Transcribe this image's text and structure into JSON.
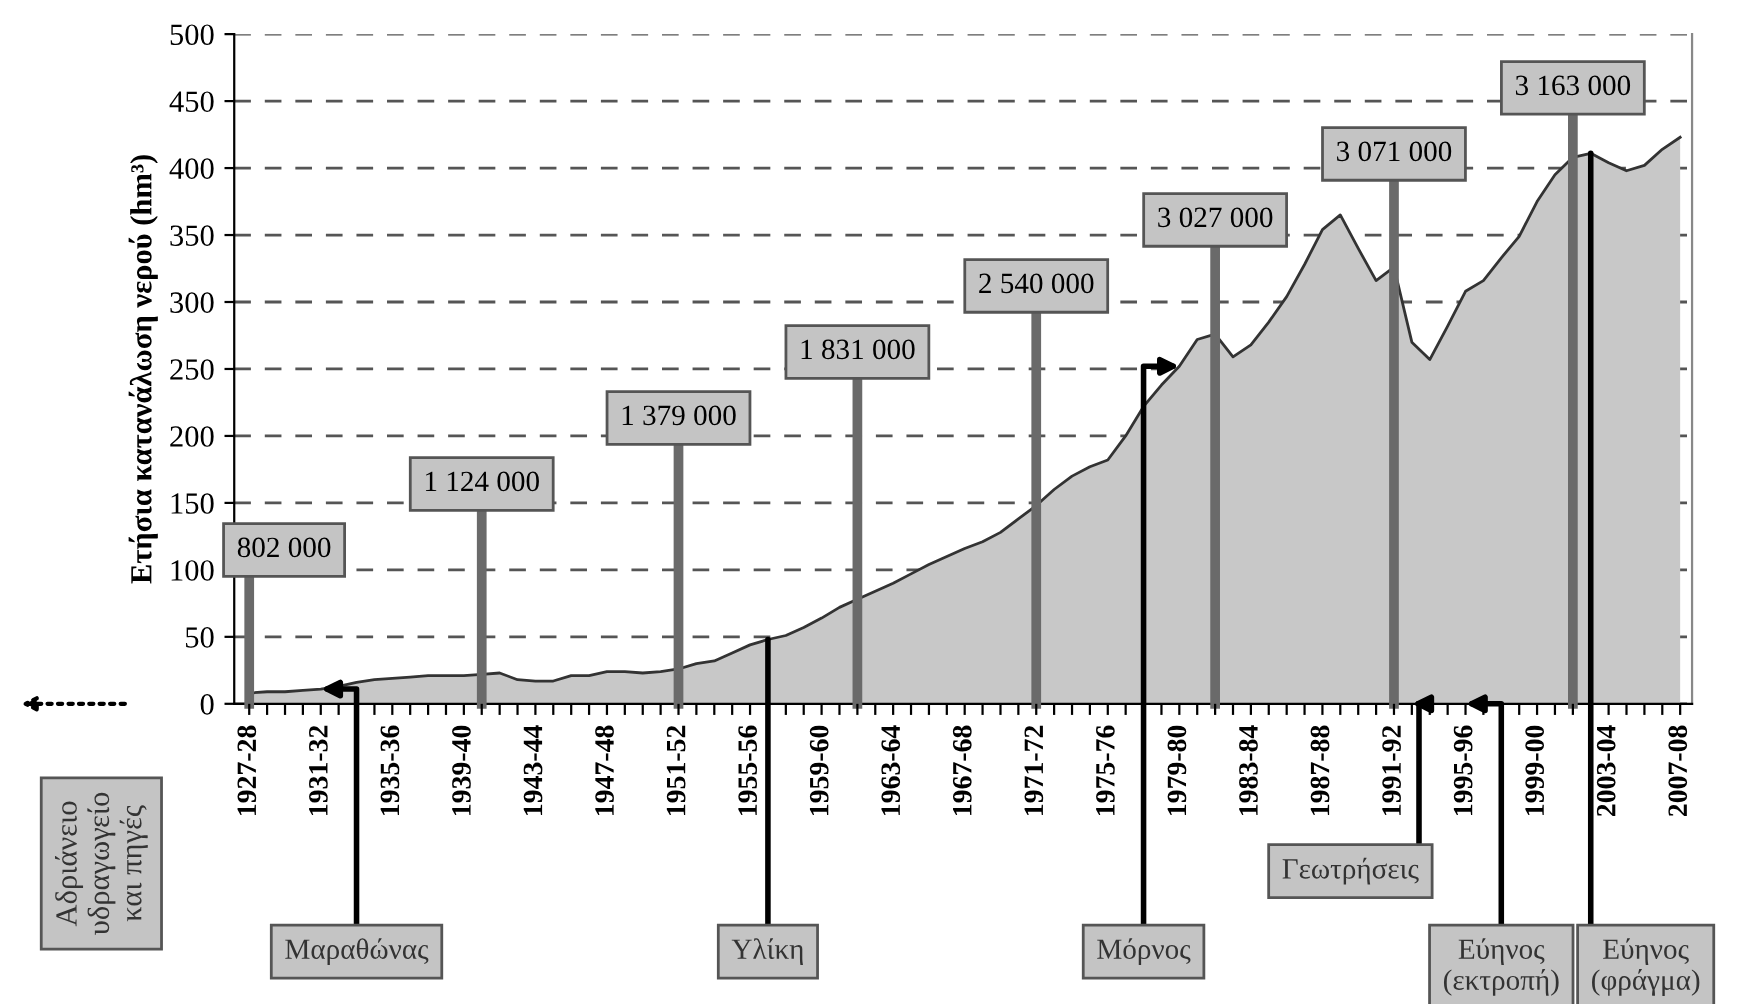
{
  "chart_data": {
    "type": "area",
    "ylabel": "Ετήσια κατανάλωση νερού (hm³)",
    "x": [
      "1927",
      "1928",
      "1929",
      "1930",
      "1931",
      "1932",
      "1933",
      "1934",
      "1935",
      "1936",
      "1937",
      "1938",
      "1939",
      "1940",
      "1941",
      "1942",
      "1943",
      "1944",
      "1945",
      "1946",
      "1947",
      "1948",
      "1949",
      "1950",
      "1951",
      "1952",
      "1953",
      "1954",
      "1955",
      "1956",
      "1957",
      "1958",
      "1959",
      "1960",
      "1961",
      "1962",
      "1963",
      "1964",
      "1965",
      "1966",
      "1967",
      "1968",
      "1969",
      "1970",
      "1971",
      "1972",
      "1973",
      "1974",
      "1975",
      "1976",
      "1977",
      "1978",
      "1979",
      "1980",
      "1981",
      "1982",
      "1983",
      "1984",
      "1985",
      "1986",
      "1987",
      "1988",
      "1989",
      "1990",
      "1991",
      "1992",
      "1993",
      "1994",
      "1995",
      "1996",
      "1997",
      "1998",
      "1999",
      "2000",
      "2001",
      "2002",
      "2003",
      "2004",
      "2005",
      "2006",
      "2007"
    ],
    "series": [
      {
        "color": "#c8c8c8",
        "values": [
          8,
          9,
          9,
          10,
          11,
          13,
          16,
          18,
          19,
          20,
          21,
          21,
          21,
          22,
          23,
          18,
          17,
          17,
          21,
          21,
          24,
          24,
          23,
          24,
          26,
          30,
          32,
          38,
          44,
          48,
          51,
          57,
          64,
          72,
          78,
          84,
          90,
          97,
          104,
          110,
          116,
          121,
          128,
          138,
          148,
          160,
          170,
          177,
          182,
          200,
          222,
          238,
          252,
          272,
          276,
          259,
          268,
          285,
          304,
          328,
          354,
          365,
          340,
          316,
          326,
          270,
          257,
          282,
          308,
          316,
          333,
          349,
          375,
          395,
          408,
          411,
          404,
          398,
          402,
          414,
          423
        ]
      }
    ],
    "xlim": [
      "1926-03",
      "2007-09"
    ],
    "xticks": [
      {
        "value": "1927",
        "label": "1927-28"
      },
      {
        "value": "1928",
        "label": null
      },
      {
        "value": "1929",
        "label": null
      },
      {
        "value": "1930",
        "label": null
      },
      {
        "value": "1931",
        "label": "1931-32"
      },
      {
        "value": "1932",
        "label": null
      },
      {
        "value": "1933",
        "label": null
      },
      {
        "value": "1934",
        "label": null
      },
      {
        "value": "1935",
        "label": "1935-36"
      },
      {
        "value": "1936",
        "label": null
      },
      {
        "value": "1937",
        "label": null
      },
      {
        "value": "1938",
        "label": null
      },
      {
        "value": "1939",
        "label": "1939-40"
      },
      {
        "value": "1940",
        "label": null
      },
      {
        "value": "1941",
        "label": null
      },
      {
        "value": "1942",
        "label": null
      },
      {
        "value": "1943",
        "label": "1943-44"
      },
      {
        "value": "1944",
        "label": null
      },
      {
        "value": "1945",
        "label": null
      },
      {
        "value": "1946",
        "label": null
      },
      {
        "value": "1947",
        "label": "1947-48"
      },
      {
        "value": "1948",
        "label": null
      },
      {
        "value": "1949",
        "label": null
      },
      {
        "value": "1950",
        "label": null
      },
      {
        "value": "1951",
        "label": "1951-52"
      },
      {
        "value": "1952",
        "label": null
      },
      {
        "value": "1953",
        "label": null
      },
      {
        "value": "1954",
        "label": null
      },
      {
        "value": "1955",
        "label": "1955-56"
      },
      {
        "value": "1956",
        "label": null
      },
      {
        "value": "1957",
        "label": null
      },
      {
        "value": "1958",
        "label": null
      },
      {
        "value": "1959",
        "label": "1959-60"
      },
      {
        "value": "1960",
        "label": null
      },
      {
        "value": "1961",
        "label": null
      },
      {
        "value": "1962",
        "label": null
      },
      {
        "value": "1963",
        "label": "1963-64"
      },
      {
        "value": "1964",
        "label": null
      },
      {
        "value": "1965",
        "label": null
      },
      {
        "value": "1966",
        "label": null
      },
      {
        "value": "1967",
        "label": "1967-68"
      },
      {
        "value": "1968",
        "label": null
      },
      {
        "value": "1969",
        "label": null
      },
      {
        "value": "1970",
        "label": null
      },
      {
        "value": "1971",
        "label": "1971-72"
      },
      {
        "value": "1972",
        "label": null
      },
      {
        "value": "1973",
        "label": null
      },
      {
        "value": "1974",
        "label": null
      },
      {
        "value": "1975",
        "label": "1975-76"
      },
      {
        "value": "1976",
        "label": null
      },
      {
        "value": "1977",
        "label": null
      },
      {
        "value": "1978",
        "label": null
      },
      {
        "value": "1979",
        "label": "1979-80"
      },
      {
        "value": "1980",
        "label": null
      },
      {
        "value": "1981",
        "label": null
      },
      {
        "value": "1982",
        "label": null
      },
      {
        "value": "1983",
        "label": "1983-84"
      },
      {
        "value": "1984",
        "label": null
      },
      {
        "value": "1985",
        "label": null
      },
      {
        "value": "1986",
        "label": null
      },
      {
        "value": "1987",
        "label": "1987-88"
      },
      {
        "value": "1988",
        "label": null
      },
      {
        "value": "1989",
        "label": null
      },
      {
        "value": "1990",
        "label": null
      },
      {
        "value": "1991",
        "label": "1991-92"
      },
      {
        "value": "1992",
        "label": null
      },
      {
        "value": "1993",
        "label": null
      },
      {
        "value": "1994",
        "label": null
      },
      {
        "value": "1995",
        "label": "1995-96"
      },
      {
        "value": "1996",
        "label": null
      },
      {
        "value": "1997",
        "label": null
      },
      {
        "value": "1998",
        "label": null
      },
      {
        "value": "1999",
        "label": "1999-00"
      },
      {
        "value": "2000",
        "label": null
      },
      {
        "value": "2001",
        "label": null
      },
      {
        "value": "2002",
        "label": null
      },
      {
        "value": "2003",
        "label": "2003-04"
      },
      {
        "value": "2004",
        "label": null
      },
      {
        "value": "2005",
        "label": null
      },
      {
        "value": "2006",
        "label": null
      },
      {
        "value": "2007",
        "label": "2007-08"
      }
    ],
    "ylim": [
      0,
      500
    ],
    "yticks": [
      0,
      50,
      100,
      150,
      200,
      250,
      300,
      350,
      400,
      450,
      500
    ],
    "grid": "y",
    "ref_lines": [
      {
        "axis": "x",
        "value": "1927",
        "label": "802 000",
        "color": "#6a6a6a"
      },
      {
        "axis": "x",
        "value": "1940",
        "label": "1 124 000",
        "color": "#6a6a6a"
      },
      {
        "axis": "x",
        "value": "1951",
        "label": "1 379 000",
        "color": "#6a6a6a"
      },
      {
        "axis": "x",
        "value": "1961",
        "label": "1 831 000",
        "color": "#6a6a6a"
      },
      {
        "axis": "x",
        "value": "1971",
        "label": "2 540 000",
        "color": "#6a6a6a"
      },
      {
        "axis": "x",
        "value": "1981",
        "label": "3 027 000",
        "color": "#6a6a6a"
      },
      {
        "axis": "x",
        "value": "1991",
        "label": "3 071 000",
        "color": "#6a6a6a"
      },
      {
        "axis": "x",
        "value": "2001",
        "label": "3 163 000",
        "color": "#6a6a6a"
      }
    ],
    "annotations": [
      {
        "text": "Μαραθώνας",
        "x": "1931",
        "y": 11
      },
      {
        "text": "Υλίκη",
        "x": "1956",
        "y": 48
      },
      {
        "text": "Μόρνος",
        "x": "1979",
        "y": 252
      },
      {
        "text": "Γεωτρήσεις",
        "x": "1992",
        "y": 0
      },
      {
        "text": "Εύηνος\n(εκτροπή)",
        "x": "1995",
        "y": 0
      },
      {
        "text": "Εύηνος\n(φράγμα)",
        "x": "2002",
        "y": 411
      },
      "Αδριάνειο\nυδραγωγείο\nκαι πηγές"
    ]
  }
}
